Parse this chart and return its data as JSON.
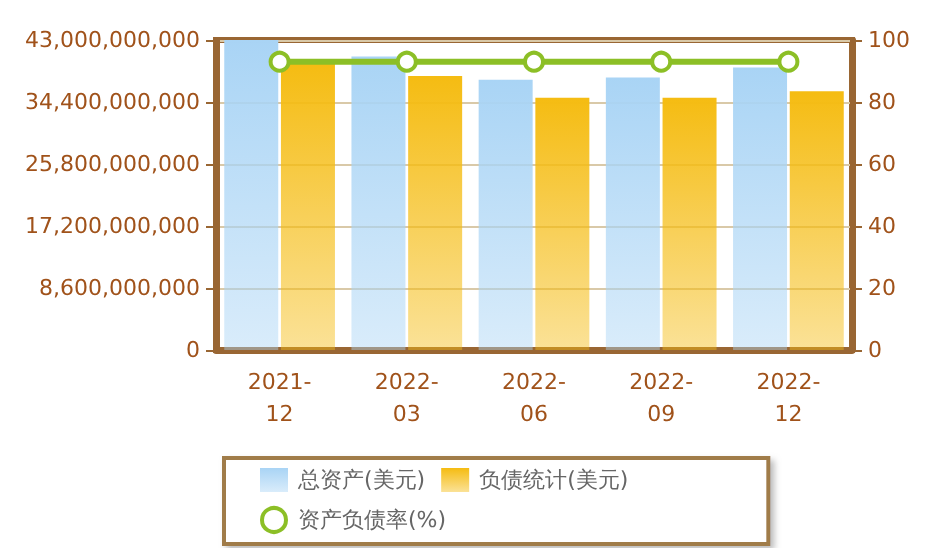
{
  "chart_data": {
    "type": "bar",
    "categories": [
      "2021-12",
      "2022-03",
      "2022-06",
      "2022-09",
      "2022-12"
    ],
    "series": [
      {
        "name": "总资产(美元)",
        "color": "#a9d4f5",
        "values": [
          43000000000,
          40700000000,
          37500000000,
          37800000000,
          39200000000
        ]
      },
      {
        "name": "负债统计(美元)",
        "color": "#f5bc12",
        "values": [
          39700000000,
          38000000000,
          35000000000,
          35000000000,
          35900000000
        ]
      },
      {
        "name": "资产负债率(%)",
        "type": "line",
        "axis": "y2",
        "color": "#8cbf26",
        "marker": "circle",
        "values": [
          93,
          93,
          93,
          93,
          93
        ]
      }
    ],
    "ylim": [
      0,
      43000000000
    ],
    "yticks": [
      {
        "value": 0,
        "label": "0"
      },
      {
        "value": 8600000000,
        "label": "8,600,000,000"
      },
      {
        "value": 17200000000,
        "label": "17,200,000,000"
      },
      {
        "value": 25800000000,
        "label": "25,800,000,000"
      },
      {
        "value": 34400000000,
        "label": "34,400,000,000"
      },
      {
        "value": 43000000000,
        "label": "43,000,000,000"
      }
    ],
    "y2lim": [
      0,
      100
    ],
    "y2ticks": [
      0,
      20,
      40,
      60,
      80,
      100
    ],
    "grid": "y",
    "legend": "bottom"
  }
}
